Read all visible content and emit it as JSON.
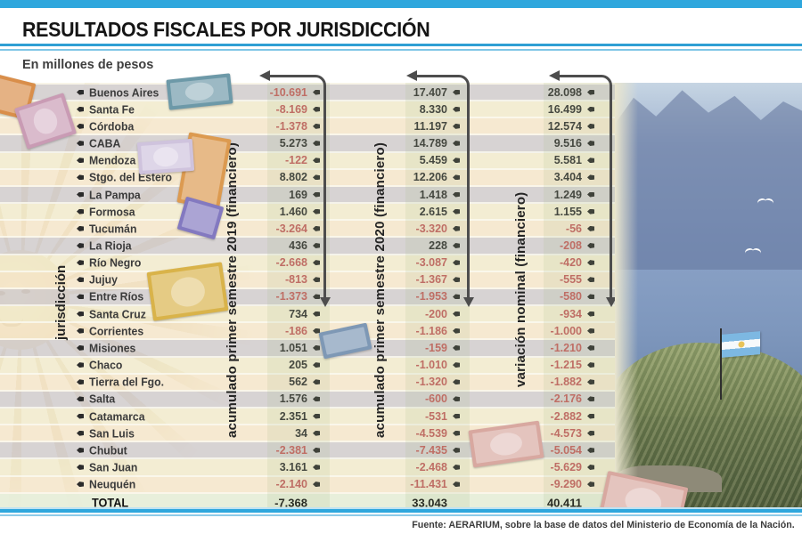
{
  "header": {
    "title": "RESULTADOS FISCALES POR JURISDICCIÓN",
    "subtitle": "En millones de pesos"
  },
  "footer": {
    "source": "Fuente: AERARIUM, sobre la base de datos del Ministerio de Economía de la Nación."
  },
  "colors": {
    "accent_blue": "#2fa7dd",
    "negative_value": "#c4605f",
    "positive_value": "#333333"
  },
  "icons": {
    "row_marker": "bullet-icon",
    "column_marker": "arrow-connector"
  },
  "table": {
    "axis_label": "jurisdicción",
    "columns": [
      "acumulado primer semestre 2019 (financiero)",
      "acumulado primer semestre 2020 (financiero)",
      "variación nominal  (financiero)"
    ],
    "rows": [
      {
        "name": "Buenos Aires",
        "v2019": "-10.691",
        "v2020": "17.407",
        "var": "28.098"
      },
      {
        "name": "Santa Fe",
        "v2019": "-8.169",
        "v2020": "8.330",
        "var": "16.499"
      },
      {
        "name": "Córdoba",
        "v2019": "-1.378",
        "v2020": "11.197",
        "var": "12.574"
      },
      {
        "name": "CABA",
        "v2019": "5.273",
        "v2020": "14.789",
        "var": "9.516"
      },
      {
        "name": "Mendoza",
        "v2019": "-122",
        "v2020": "5.459",
        "var": "5.581"
      },
      {
        "name": "Stgo. del Estero",
        "v2019": "8.802",
        "v2020": "12.206",
        "var": "3.404"
      },
      {
        "name": "La Pampa",
        "v2019": "169",
        "v2020": "1.418",
        "var": "1.249"
      },
      {
        "name": "Formosa",
        "v2019": "1.460",
        "v2020": "2.615",
        "var": "1.155"
      },
      {
        "name": "Tucumán",
        "v2019": "-3.264",
        "v2020": "-3.320",
        "var": "-56"
      },
      {
        "name": "La Rioja",
        "v2019": "436",
        "v2020": "228",
        "var": "-208"
      },
      {
        "name": "Río Negro",
        "v2019": "-2.668",
        "v2020": "-3.087",
        "var": "-420"
      },
      {
        "name": "Jujuy",
        "v2019": "-813",
        "v2020": "-1.367",
        "var": "-555"
      },
      {
        "name": "Entre Ríos",
        "v2019": "-1.373",
        "v2020": "-1.953",
        "var": "-580"
      },
      {
        "name": "Santa Cruz",
        "v2019": "734",
        "v2020": "-200",
        "var": "-934"
      },
      {
        "name": "Corrientes",
        "v2019": "-186",
        "v2020": "-1.186",
        "var": "-1.000"
      },
      {
        "name": "Misiones",
        "v2019": "1.051",
        "v2020": "-159",
        "var": "-1.210"
      },
      {
        "name": "Chaco",
        "v2019": "205",
        "v2020": "-1.010",
        "var": "-1.215"
      },
      {
        "name": "Tierra del Fgo.",
        "v2019": "562",
        "v2020": "-1.320",
        "var": "-1.882"
      },
      {
        "name": "Salta",
        "v2019": "1.576",
        "v2020": "-600",
        "var": "-2.176"
      },
      {
        "name": "Catamarca",
        "v2019": "2.351",
        "v2020": "-531",
        "var": "-2.882"
      },
      {
        "name": "San Luis",
        "v2019": "34",
        "v2020": "-4.539",
        "var": "-4.573"
      },
      {
        "name": "Chubut",
        "v2019": "-2.381",
        "v2020": "-7.435",
        "var": "-5.054"
      },
      {
        "name": "San Juan",
        "v2019": "3.161",
        "v2020": "-2.468",
        "var": "-5.629"
      },
      {
        "name": "Neuquén",
        "v2019": "-2.140",
        "v2020": "-11.431",
        "var": "-9.290"
      }
    ],
    "total": {
      "label": "TOTAL",
      "v2019": "-7.368",
      "v2020": "33.043",
      "var": "40.411"
    }
  },
  "chart_data": {
    "type": "table",
    "title": "RESULTADOS FISCALES POR JURISDICCIÓN",
    "subtitle": "En millones de pesos",
    "unit": "millones de pesos",
    "categories": [
      "Buenos Aires",
      "Santa Fe",
      "Córdoba",
      "CABA",
      "Mendoza",
      "Stgo. del Estero",
      "La Pampa",
      "Formosa",
      "Tucumán",
      "La Rioja",
      "Río Negro",
      "Jujuy",
      "Entre Ríos",
      "Santa Cruz",
      "Corrientes",
      "Misiones",
      "Chaco",
      "Tierra del Fgo.",
      "Salta",
      "Catamarca",
      "San Luis",
      "Chubut",
      "San Juan",
      "Neuquén"
    ],
    "series": [
      {
        "name": "acumulado primer semestre 2019 (financiero)",
        "values": [
          -10691,
          -8169,
          -1378,
          5273,
          -122,
          8802,
          169,
          1460,
          -3264,
          436,
          -2668,
          -813,
          -1373,
          734,
          -186,
          1051,
          205,
          562,
          1576,
          2351,
          34,
          -2381,
          3161,
          -2140
        ]
      },
      {
        "name": "acumulado primer semestre 2020 (financiero)",
        "values": [
          17407,
          8330,
          11197,
          14789,
          5459,
          12206,
          1418,
          2615,
          -3320,
          228,
          -3087,
          -1367,
          -1953,
          -200,
          -1186,
          -159,
          -1010,
          -1320,
          -600,
          -531,
          -4539,
          -7435,
          -2468,
          -11431
        ]
      },
      {
        "name": "variación nominal (financiero)",
        "values": [
          28098,
          16499,
          12574,
          9516,
          5581,
          3404,
          1249,
          1155,
          -56,
          -208,
          -420,
          -555,
          -580,
          -934,
          -1000,
          -1210,
          -1215,
          -1882,
          -2176,
          -2882,
          -4573,
          -5054,
          -5629,
          -9290
        ]
      }
    ],
    "totals": {
      "2019": -7368,
      "2020": 33043,
      "variacion": 40411
    },
    "negative_values_color": "#c4605f"
  }
}
